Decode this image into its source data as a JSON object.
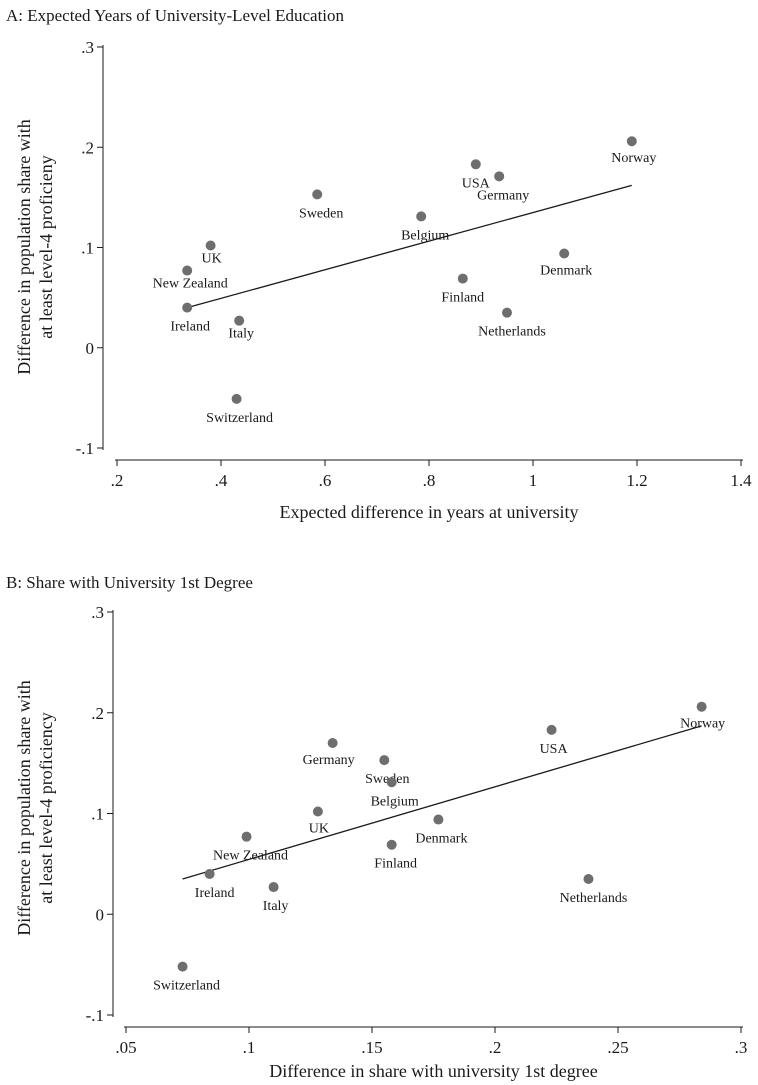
{
  "chart_data": [
    {
      "type": "scatter",
      "title": "A: Expected Years of University-Level Education",
      "xlabel": "Expected difference in years at university",
      "ylabel": [
        "Difference in population share with",
        "at least level-4 proficieny"
      ],
      "xlim": [
        0.2,
        1.4
      ],
      "ylim": [
        -0.1,
        0.3
      ],
      "xticks": [
        {
          "v": 0.2,
          "label": ".2"
        },
        {
          "v": 0.4,
          "label": ".4"
        },
        {
          "v": 0.6,
          "label": ".6"
        },
        {
          "v": 0.8,
          "label": ".8"
        },
        {
          "v": 1.0,
          "label": "1"
        },
        {
          "v": 1.2,
          "label": "1.2"
        },
        {
          "v": 1.4,
          "label": "1.4"
        }
      ],
      "yticks": [
        {
          "v": -0.1,
          "label": "-.1"
        },
        {
          "v": 0,
          "label": "0"
        },
        {
          "v": 0.1,
          "label": ".1"
        },
        {
          "v": 0.2,
          "label": ".2"
        },
        {
          "v": 0.3,
          "label": ".3"
        }
      ],
      "points": [
        {
          "label": "Norway",
          "x": 1.19,
          "y": 0.206
        },
        {
          "label": "USA",
          "x": 0.89,
          "y": 0.183
        },
        {
          "label": "Germany",
          "x": 0.935,
          "y": 0.171
        },
        {
          "label": "Sweden",
          "x": 0.585,
          "y": 0.153
        },
        {
          "label": "Belgium",
          "x": 0.785,
          "y": 0.131
        },
        {
          "label": "UK",
          "x": 0.38,
          "y": 0.102
        },
        {
          "label": "Denmark",
          "x": 1.06,
          "y": 0.094
        },
        {
          "label": "New Zealand",
          "x": 0.335,
          "y": 0.077
        },
        {
          "label": "Finland",
          "x": 0.865,
          "y": 0.069
        },
        {
          "label": "Ireland",
          "x": 0.335,
          "y": 0.04
        },
        {
          "label": "Netherlands",
          "x": 0.95,
          "y": 0.035
        },
        {
          "label": "Italy",
          "x": 0.435,
          "y": 0.027
        },
        {
          "label": "Switzerland",
          "x": 0.43,
          "y": -0.051
        }
      ],
      "fit_line": {
        "x": [
          0.335,
          1.19
        ],
        "y": [
          0.04,
          0.162
        ]
      }
    },
    {
      "type": "scatter",
      "title": "B: Share with University 1st Degree",
      "xlabel": "Difference in share with university 1st degree",
      "ylabel": [
        "Difference in population share with",
        "at least level-4 proficiency"
      ],
      "xlim": [
        0.05,
        0.3
      ],
      "ylim": [
        -0.1,
        0.3
      ],
      "xticks": [
        {
          "v": 0.05,
          "label": ".05"
        },
        {
          "v": 0.1,
          "label": ".1"
        },
        {
          "v": 0.15,
          "label": ".15"
        },
        {
          "v": 0.2,
          "label": ".2"
        },
        {
          "v": 0.25,
          "label": ".25"
        },
        {
          "v": 0.3,
          "label": ".3"
        }
      ],
      "yticks": [
        {
          "v": -0.1,
          "label": "-.1"
        },
        {
          "v": 0,
          "label": "0"
        },
        {
          "v": 0.1,
          "label": ".1"
        },
        {
          "v": 0.2,
          "label": ".2"
        },
        {
          "v": 0.3,
          "label": ".3"
        }
      ],
      "points": [
        {
          "label": "Norway",
          "x": 0.284,
          "y": 0.206
        },
        {
          "label": "USA",
          "x": 0.223,
          "y": 0.183
        },
        {
          "label": "Germany",
          "x": 0.134,
          "y": 0.17
        },
        {
          "label": "Sweden",
          "x": 0.155,
          "y": 0.153
        },
        {
          "label": "Belgium",
          "x": 0.158,
          "y": 0.131
        },
        {
          "label": "UK",
          "x": 0.128,
          "y": 0.102
        },
        {
          "label": "Denmark",
          "x": 0.177,
          "y": 0.094
        },
        {
          "label": "New Zealand",
          "x": 0.099,
          "y": 0.077
        },
        {
          "label": "Finland",
          "x": 0.158,
          "y": 0.069
        },
        {
          "label": "Ireland",
          "x": 0.084,
          "y": 0.04
        },
        {
          "label": "Netherlands",
          "x": 0.238,
          "y": 0.035
        },
        {
          "label": "Italy",
          "x": 0.11,
          "y": 0.027
        },
        {
          "label": "Switzerland",
          "x": 0.073,
          "y": -0.052
        }
      ],
      "fit_line": {
        "x": [
          0.073,
          0.284
        ],
        "y": [
          0.035,
          0.187
        ]
      }
    }
  ]
}
